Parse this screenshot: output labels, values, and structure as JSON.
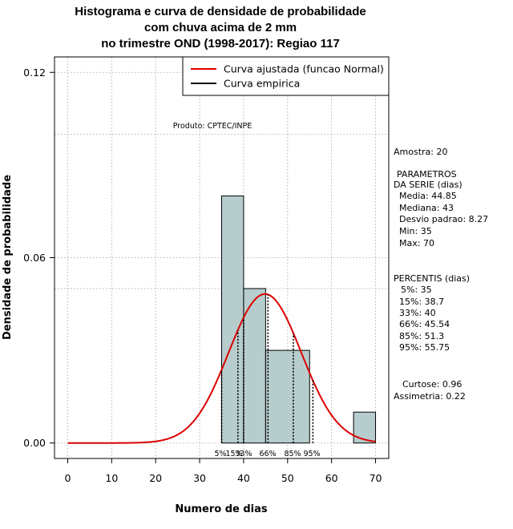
{
  "chart_data": {
    "type": "histogram",
    "title_lines": [
      "Histograma e curva de densidade de probabilidade",
      "com chuva acima de 2 mm",
      "no trimestre OND (1998-2017): Regiao 117"
    ],
    "xlabel": "Numero de dias",
    "ylabel": "Densidade de probabilidade",
    "xlim": [
      -3,
      73
    ],
    "ylim": [
      -0.005,
      0.125
    ],
    "xticks": [
      0,
      10,
      20,
      30,
      40,
      50,
      60,
      70
    ],
    "yticks": [
      0.0,
      0.06,
      0.12
    ],
    "ytick_labels": [
      "0.00",
      "0.06",
      "0.12"
    ],
    "extra_gridlines_y": [
      0.1,
      0.05
    ],
    "bins": [
      {
        "from": 35,
        "to": 40,
        "density": 0.08
      },
      {
        "from": 40,
        "to": 45,
        "density": 0.05
      },
      {
        "from": 45,
        "to": 55,
        "density": 0.03
      },
      {
        "from": 65,
        "to": 70,
        "density": 0.01
      }
    ],
    "normal_fit": {
      "mean": 44.85,
      "sd": 8.27,
      "x_from": 0,
      "x_to": 70,
      "color": "#dd0000"
    },
    "percentile_lines": [
      {
        "label": "5%",
        "x": 35
      },
      {
        "label": "15%",
        "x": 38.7
      },
      {
        "label": "33%",
        "x": 40
      },
      {
        "label": "66%",
        "x": 45.54
      },
      {
        "label": "85%",
        "x": 51.3
      },
      {
        "label": "95%",
        "x": 55.75
      }
    ],
    "percentile_label_row": [
      "5%",
      "15%",
      "33%",
      "66%",
      "85%",
      "95%"
    ],
    "legend": [
      {
        "label": "Curva ajustada (funcao Normal)",
        "color": "#dd0000"
      },
      {
        "label": "Curva empirica",
        "color": "#000000"
      }
    ],
    "legend_position": "top-right",
    "product_label": "Produto: CPTEC/INPE",
    "bar_color": "#b7cdcd"
  },
  "stats_panel": {
    "amostra": "Amostra: 20",
    "params_title": "PARAMETROS",
    "params_sub": "DA SERIE (dias)",
    "media": "Media: 44.85",
    "mediana": "Mediana: 43",
    "desvio": "Desvio padrao: 8.27",
    "min": "Min: 35",
    "max": "Max: 70",
    "perc_title": "PERCENTIS (dias)",
    "p5": "5%: 35",
    "p15": "15%: 38.7",
    "p33": "33%: 40",
    "p66": "66%: 45.54",
    "p85": "85%: 51.3",
    "p95": "95%: 55.75",
    "curtose": "Curtose: 0.96",
    "assimetria": "Assimetria: 0.22"
  }
}
